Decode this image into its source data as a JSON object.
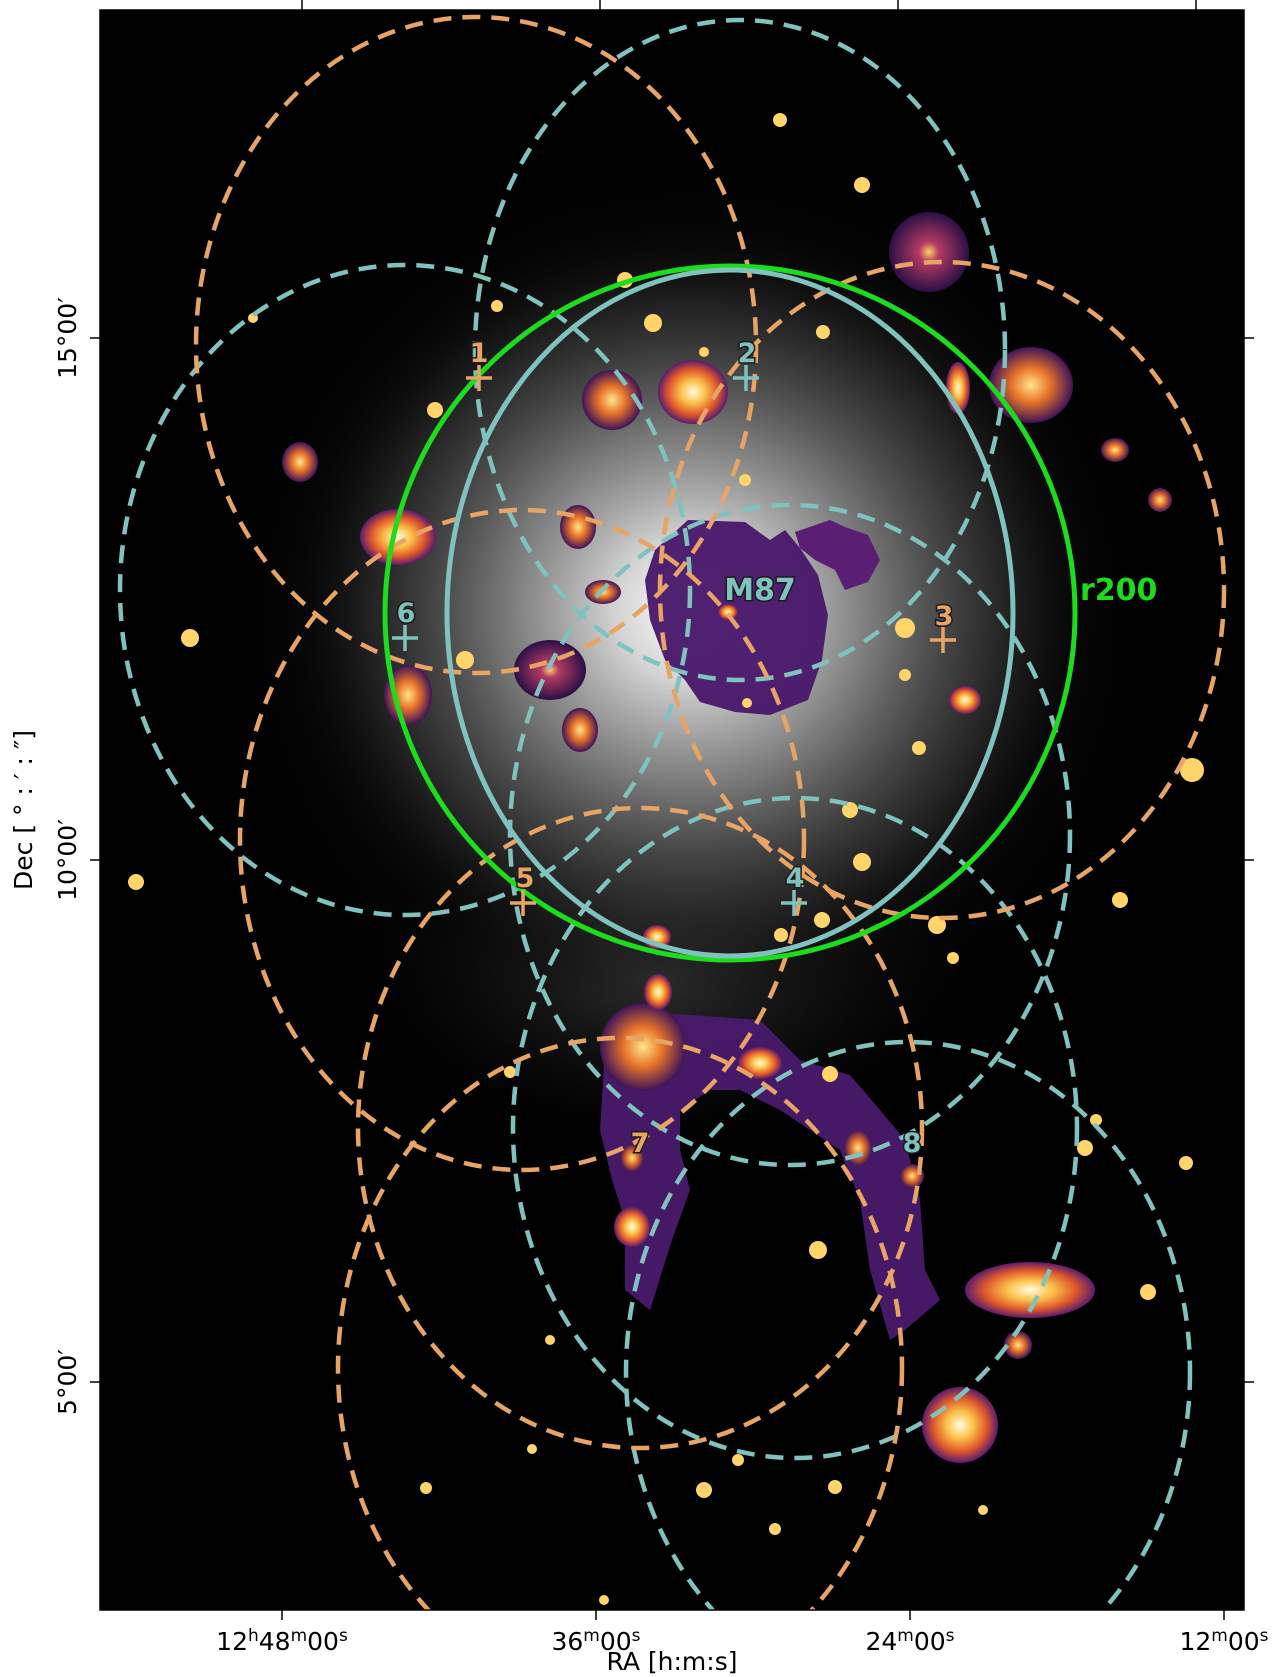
{
  "axes": {
    "xlabel": "RA [h:m:s]",
    "ylabel": "Dec [ ° : ′ : ″]",
    "x_ticks": [
      "12h48m00s",
      "36m00s",
      "24m00s",
      "12m00s"
    ],
    "y_ticks": [
      "15°00′",
      "10°00′",
      "5°00′"
    ]
  },
  "labels": {
    "m87": "M87",
    "r200": "r200",
    "fields": [
      "1",
      "2",
      "3",
      "4",
      "5",
      "6",
      "7",
      "8"
    ]
  },
  "colors": {
    "orange": "#e8a465",
    "teal": "#7fc2be",
    "green": "#1ddc1d",
    "background": "#000000"
  }
}
